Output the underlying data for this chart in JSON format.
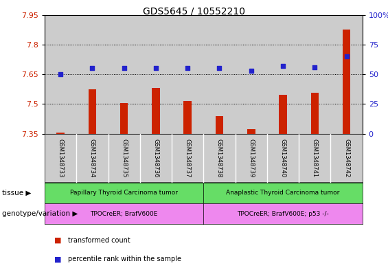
{
  "title": "GDS5645 / 10552210",
  "samples": [
    "GSM1348733",
    "GSM1348734",
    "GSM1348735",
    "GSM1348736",
    "GSM1348737",
    "GSM1348738",
    "GSM1348739",
    "GSM1348740",
    "GSM1348741",
    "GSM1348742"
  ],
  "bar_values": [
    7.357,
    7.575,
    7.505,
    7.582,
    7.515,
    7.44,
    7.372,
    7.545,
    7.558,
    7.875
  ],
  "dot_values": [
    50,
    55,
    55,
    55,
    55,
    55,
    53,
    57,
    56,
    65
  ],
  "ylim_left": [
    7.35,
    7.95
  ],
  "ylim_right": [
    0,
    100
  ],
  "yticks_left": [
    7.35,
    7.5,
    7.65,
    7.8,
    7.95
  ],
  "yticks_right": [
    0,
    25,
    50,
    75,
    100
  ],
  "bar_color": "#cc2200",
  "dot_color": "#2222cc",
  "hline_values": [
    7.5,
    7.65,
    7.8
  ],
  "tissue_group1": "Papillary Thyroid Carcinoma tumor",
  "tissue_group2": "Anaplastic Thyroid Carcinoma tumor",
  "genotype_group1": "TPOCreER; BrafV600E",
  "genotype_group2": "TPOCreER; BrafV600E; p53 -/-",
  "tissue_label": "tissue",
  "genotype_label": "genotype/variation",
  "legend_bar": "transformed count",
  "legend_dot": "percentile rank within the sample",
  "group1_count": 5,
  "group2_count": 5,
  "tissue_color1": "#66dd66",
  "tissue_color2": "#66dd66",
  "genotype_color1": "#ee88ee",
  "genotype_color2": "#ee88ee",
  "col_bg_color": "#cccccc",
  "plot_bg_color": "#ffffff"
}
